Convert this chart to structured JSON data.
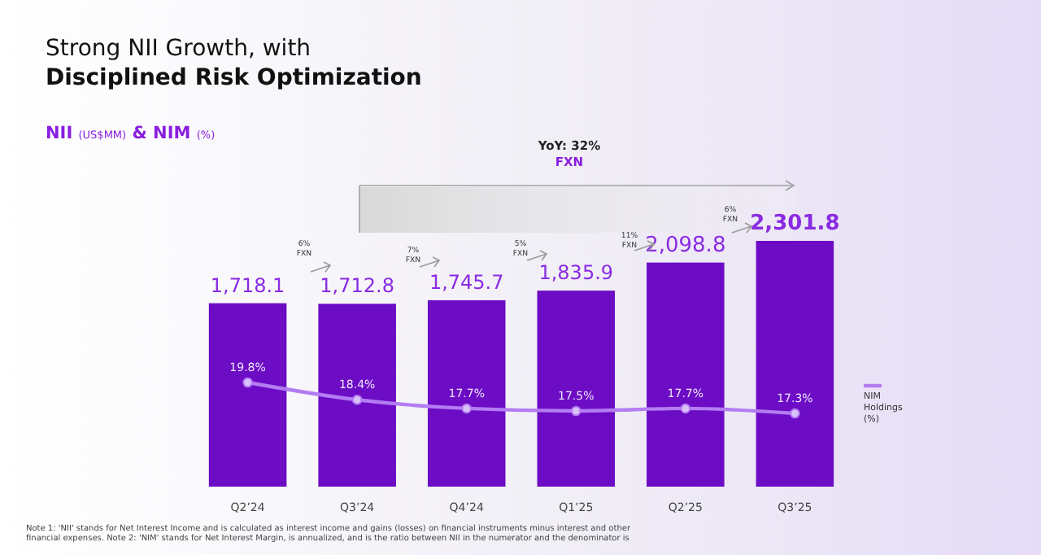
{
  "chart_data": {
    "type": "bar",
    "title": "Strong NII Growth, with\nDisciplined Risk Optimization",
    "subtitle": "NII (US$MM) & NIM (%)",
    "categories": [
      "Q2’24",
      "Q3’24",
      "Q4’24",
      "Q1’25",
      "Q2’25",
      "Q3’25"
    ],
    "series": [
      {
        "color": "#6c0cc4",
        "values": [
          1718.1,
          1712.8,
          1745.7,
          1835.9,
          2098.8,
          2301.8
        ],
        "value_labels": [
          "1,718.1",
          "1,712.8",
          "1,745.7",
          "1,835.9",
          "2,098.8",
          "2,301.8"
        ]
      },
      {
        "type": "line",
        "axis": "y2",
        "name": "NIM Holdings (%)",
        "color": "#b47cf2",
        "values": [
          19.8,
          18.4,
          17.7,
          17.5,
          17.7,
          17.3
        ],
        "value_labels": [
          "19.8%",
          "18.4%",
          "17.7%",
          "17.5%",
          "17.7%",
          "17.3%"
        ]
      }
    ],
    "marker": "circle",
    "legend": "right",
    "tick_labels": "x",
    "annotations": [
      "YoY: 32%\nFXN",
      "6%\nFXN",
      "7%\nFXN",
      "5%\nFXN",
      "11%\nFXN",
      "6%\nFXN",
      "Note 1: 'NII' stands for Net Interest Income and is calculated as interest income and gains (losses) on financial instruments minus interest and other financial expenses. Note 2: 'NIM' stands for Net Interest Margin, is annualized, and is the ratio between NII in the numerator and the denominator is"
    ]
  }
}
